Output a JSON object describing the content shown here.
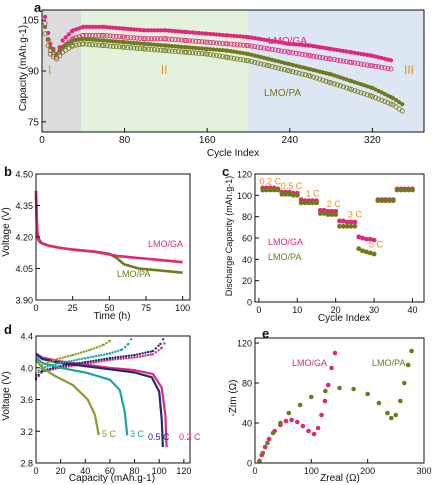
{
  "figure": {
    "colors": {
      "lmo_ga": "#e0287a",
      "lmo_pa": "#6f7a1c",
      "region_i": "#dcdcdc",
      "region_ii": "#e4f1dc",
      "region_iii": "#dde6f3",
      "label_orange": "#f08a1c",
      "teal": "#1aa5a5",
      "navy": "#1f2a7a",
      "olive_light": "#8e9a2a"
    }
  },
  "chart_data": [
    {
      "panel": "a",
      "type": "scatter",
      "xlabel": "Cycle Index",
      "ylabel": "Capacity (mAh.g-1)",
      "xlim": [
        0,
        370
      ],
      "ylim": [
        72,
        108
      ],
      "xticks": [
        "0",
        "80",
        "160",
        "240",
        "320"
      ],
      "yticks": [
        "75",
        "90",
        "105"
      ],
      "regions": [
        {
          "label": "I",
          "from": 0,
          "to": 38
        },
        {
          "label": "II",
          "from": 38,
          "to": 200
        },
        {
          "label": "III",
          "from": 200,
          "to": 370
        }
      ],
      "series": [
        {
          "name": "LMO/GA",
          "key": "lmo_ga",
          "x": [
            3,
            8,
            14,
            20,
            30,
            40,
            60,
            80,
            100,
            120,
            140,
            160,
            180,
            200,
            220,
            240,
            260,
            280,
            300,
            320,
            340
          ],
          "y": [
            106,
            98,
            95,
            99,
            102,
            103,
            103,
            102.5,
            102,
            102,
            101.5,
            101,
            100.5,
            100,
            99,
            98,
            97.5,
            96.5,
            95.5,
            94.5,
            93
          ]
        },
        {
          "name": "LMO/GA open",
          "key": "lmo_ga",
          "x": [
            3,
            8,
            14,
            20,
            30,
            40,
            60,
            80,
            100,
            120,
            140,
            160,
            180,
            200,
            220,
            240,
            260,
            280,
            300,
            320,
            340
          ],
          "y": [
            104,
            96,
            94,
            97,
            99.5,
            100.5,
            100.5,
            100,
            99.5,
            99.5,
            99,
            98.5,
            98,
            97.5,
            96.5,
            95.5,
            94.5,
            93.5,
            92.5,
            91.5,
            90.5
          ]
        },
        {
          "name": "LMO/PA",
          "key": "lmo_pa",
          "x": [
            3,
            8,
            14,
            20,
            30,
            40,
            60,
            80,
            100,
            120,
            140,
            160,
            180,
            200,
            220,
            240,
            260,
            280,
            300,
            320,
            340,
            350
          ],
          "y": [
            103,
            97,
            95,
            97,
            99,
            99.5,
            99,
            98.5,
            98,
            97.5,
            97,
            96.5,
            96,
            95,
            93.5,
            92,
            90.5,
            89,
            87,
            85,
            82,
            80
          ]
        },
        {
          "name": "LMO/PA open",
          "key": "lmo_pa",
          "x": [
            3,
            8,
            14,
            20,
            30,
            40,
            60,
            80,
            100,
            120,
            140,
            160,
            180,
            200,
            220,
            240,
            260,
            280,
            300,
            320,
            340,
            350
          ],
          "y": [
            101,
            95,
            93.5,
            95.5,
            97.5,
            98,
            97.5,
            97,
            96.5,
            96,
            95.5,
            95,
            94,
            93,
            91.5,
            90,
            88.5,
            86.5,
            84.5,
            82.5,
            80,
            78
          ]
        }
      ],
      "labels": {
        "ga": "LMO/GA",
        "pa": "LMO/PA",
        "panel": "a"
      }
    },
    {
      "panel": "b",
      "type": "line",
      "xlabel": "Time (h)",
      "ylabel": "Voltage (V)",
      "xlim": [
        0,
        105
      ],
      "ylim": [
        3.9,
        4.5
      ],
      "xticks": [
        "0",
        "25",
        "50",
        "75",
        "100"
      ],
      "yticks": [
        "3.90",
        "4.05",
        "4.20",
        "4.35",
        "4.50"
      ],
      "series": [
        {
          "name": "LMO/GA",
          "key": "lmo_ga",
          "x": [
            0,
            0.5,
            1,
            2,
            4,
            8,
            15,
            25,
            40,
            55,
            70,
            85,
            100
          ],
          "y": [
            4.42,
            4.3,
            4.22,
            4.19,
            4.17,
            4.16,
            4.15,
            4.14,
            4.13,
            4.11,
            4.1,
            4.09,
            4.08
          ]
        },
        {
          "name": "LMO/PA",
          "key": "lmo_pa",
          "x": [
            0,
            0.5,
            1,
            2,
            4,
            8,
            15,
            25,
            40,
            50,
            55,
            60,
            70,
            85,
            100
          ],
          "y": [
            4.4,
            4.27,
            4.2,
            4.18,
            4.17,
            4.16,
            4.15,
            4.14,
            4.13,
            4.12,
            4.1,
            4.07,
            4.05,
            4.04,
            4.03
          ]
        }
      ],
      "labels": {
        "ga": "LMO/GA",
        "pa": "LMO/PA",
        "panel": "b"
      }
    },
    {
      "panel": "c",
      "type": "scatter",
      "xlabel": "Cycle Index",
      "ylabel": "Discharge Capacity (mAh.g-1)",
      "xlim": [
        -1,
        43
      ],
      "ylim": [
        0,
        120
      ],
      "xticks": [
        "0",
        "10",
        "20",
        "30",
        "40"
      ],
      "yticks": [
        "0",
        "20",
        "40",
        "60",
        "80",
        "100",
        "120"
      ],
      "rate_labels": [
        "0.2 C",
        "0.5 C",
        "1 C",
        "2 C",
        "3 C",
        "5 C"
      ],
      "series": [
        {
          "name": "LMO/GA",
          "key": "lmo_ga",
          "x": [
            1,
            2,
            3,
            4,
            5,
            6,
            7,
            8,
            9,
            10,
            11,
            12,
            13,
            14,
            15,
            16,
            17,
            18,
            19,
            20,
            21,
            22,
            23,
            24,
            25,
            26,
            27,
            28,
            29,
            30,
            31,
            32,
            33,
            34,
            35,
            36,
            37,
            38,
            39,
            40
          ],
          "y": [
            107,
            107,
            107,
            107,
            106,
            103,
            103,
            103,
            102,
            102,
            96,
            95,
            95,
            95,
            95,
            86,
            86,
            85,
            85,
            85,
            76,
            76,
            75,
            75,
            75,
            61,
            60,
            59,
            59,
            58,
            96,
            96,
            96,
            96,
            96,
            106,
            106,
            106,
            106,
            106
          ]
        },
        {
          "name": "LMO/PA",
          "key": "lmo_pa",
          "x": [
            1,
            2,
            3,
            4,
            5,
            6,
            7,
            8,
            9,
            10,
            11,
            12,
            13,
            14,
            15,
            16,
            17,
            18,
            19,
            20,
            21,
            22,
            23,
            24,
            25,
            26,
            27,
            28,
            29,
            30,
            31,
            32,
            33,
            34,
            35,
            36,
            37,
            38,
            39,
            40
          ],
          "y": [
            105,
            105,
            105,
            105,
            105,
            101,
            101,
            101,
            100,
            100,
            93,
            93,
            93,
            93,
            93,
            83,
            83,
            82,
            82,
            82,
            71,
            71,
            71,
            71,
            71,
            50,
            48,
            47,
            46,
            45,
            95,
            95,
            95,
            95,
            95,
            105,
            105,
            105,
            105,
            105
          ]
        }
      ],
      "labels": {
        "ga": "LMO/GA",
        "pa": "LMO/PA",
        "panel": "c"
      }
    },
    {
      "panel": "d",
      "type": "line",
      "xlabel": "Capacity (mAh.g-1)",
      "ylabel": "Voltage (V)",
      "xlim": [
        0,
        125
      ],
      "ylim": [
        2.8,
        4.4
      ],
      "xticks": [
        "0",
        "20",
        "40",
        "60",
        "80",
        "100",
        "120"
      ],
      "yticks": [
        "2.8",
        "3.2",
        "3.6",
        "4.0",
        "4.4"
      ],
      "series": [
        {
          "name": "0.2 C",
          "key": "lmo_ga",
          "charge_x": [
            0,
            5,
            20,
            40,
            60,
            80,
            95,
            102,
            106
          ],
          "charge_y": [
            3.85,
            3.95,
            4.0,
            4.05,
            4.1,
            4.13,
            4.17,
            4.25,
            4.35
          ],
          "discharge_x": [
            0,
            5,
            20,
            40,
            60,
            80,
            95,
            102,
            105,
            106
          ],
          "discharge_y": [
            4.18,
            4.13,
            4.08,
            4.04,
            4.0,
            3.97,
            3.92,
            3.75,
            3.4,
            3.0
          ]
        },
        {
          "name": "0.5 C",
          "key": "navy",
          "charge_x": [
            0,
            5,
            20,
            40,
            60,
            80,
            95,
            101,
            104
          ],
          "charge_y": [
            3.87,
            3.96,
            4.02,
            4.07,
            4.12,
            4.16,
            4.21,
            4.3,
            4.38
          ],
          "discharge_x": [
            0,
            5,
            20,
            40,
            60,
            80,
            94,
            100,
            102,
            103
          ],
          "discharge_y": [
            4.17,
            4.11,
            4.06,
            4.02,
            3.98,
            3.94,
            3.88,
            3.7,
            3.35,
            3.0
          ]
        },
        {
          "name": "3 C",
          "key": "teal",
          "charge_x": [
            0,
            5,
            20,
            40,
            60,
            70,
            75,
            78
          ],
          "charge_y": [
            3.9,
            4.0,
            4.06,
            4.12,
            4.18,
            4.23,
            4.3,
            4.38
          ],
          "discharge_x": [
            0,
            5,
            20,
            40,
            60,
            68,
            72,
            74
          ],
          "discharge_y": [
            4.13,
            4.06,
            4.0,
            3.94,
            3.85,
            3.72,
            3.45,
            3.15
          ]
        },
        {
          "name": "5 C",
          "key": "olive_light",
          "charge_x": [
            0,
            5,
            15,
            30,
            45,
            55,
            60,
            62
          ],
          "charge_y": [
            3.92,
            4.03,
            4.1,
            4.16,
            4.23,
            4.29,
            4.34,
            4.38
          ],
          "discharge_x": [
            0,
            5,
            15,
            30,
            42,
            48,
            51
          ],
          "discharge_y": [
            4.1,
            4.0,
            3.9,
            3.78,
            3.6,
            3.4,
            3.15
          ]
        }
      ],
      "labels": {
        "c02": "0.2 C",
        "c05": "0.5 C",
        "c3": "3 C",
        "c5": "5 C",
        "panel": "d"
      }
    },
    {
      "panel": "e",
      "type": "scatter",
      "xlabel": "Zreal (Ω)",
      "ylabel": "-Zim (Ω)",
      "xlim": [
        0,
        300
      ],
      "ylim": [
        0,
        125
      ],
      "xticks": [
        "0",
        "100",
        "200",
        "300"
      ],
      "yticks": [
        "0",
        "40",
        "80",
        "120"
      ],
      "series": [
        {
          "name": "LMO/GA",
          "key": "lmo_ga",
          "x": [
            8,
            12,
            18,
            25,
            35,
            45,
            55,
            65,
            75,
            85,
            95,
            105,
            112,
            118,
            124,
            130,
            136,
            142
          ],
          "y": [
            2,
            8,
            16,
            24,
            32,
            38,
            42,
            43,
            41,
            37,
            32,
            29,
            35,
            48,
            62,
            78,
            95,
            110
          ]
        },
        {
          "name": "LMO/PA",
          "key": "lmo_pa",
          "x": [
            8,
            14,
            22,
            32,
            45,
            60,
            80,
            100,
            125,
            150,
            175,
            200,
            220,
            235,
            242,
            250,
            258,
            265,
            272,
            278
          ],
          "y": [
            2,
            10,
            20,
            30,
            40,
            50,
            58,
            66,
            72,
            75,
            74,
            69,
            60,
            50,
            45,
            48,
            62,
            80,
            98,
            112
          ]
        }
      ],
      "labels": {
        "ga": "LMO/GA",
        "pa": "LMO/PA",
        "panel": "e"
      }
    }
  ]
}
